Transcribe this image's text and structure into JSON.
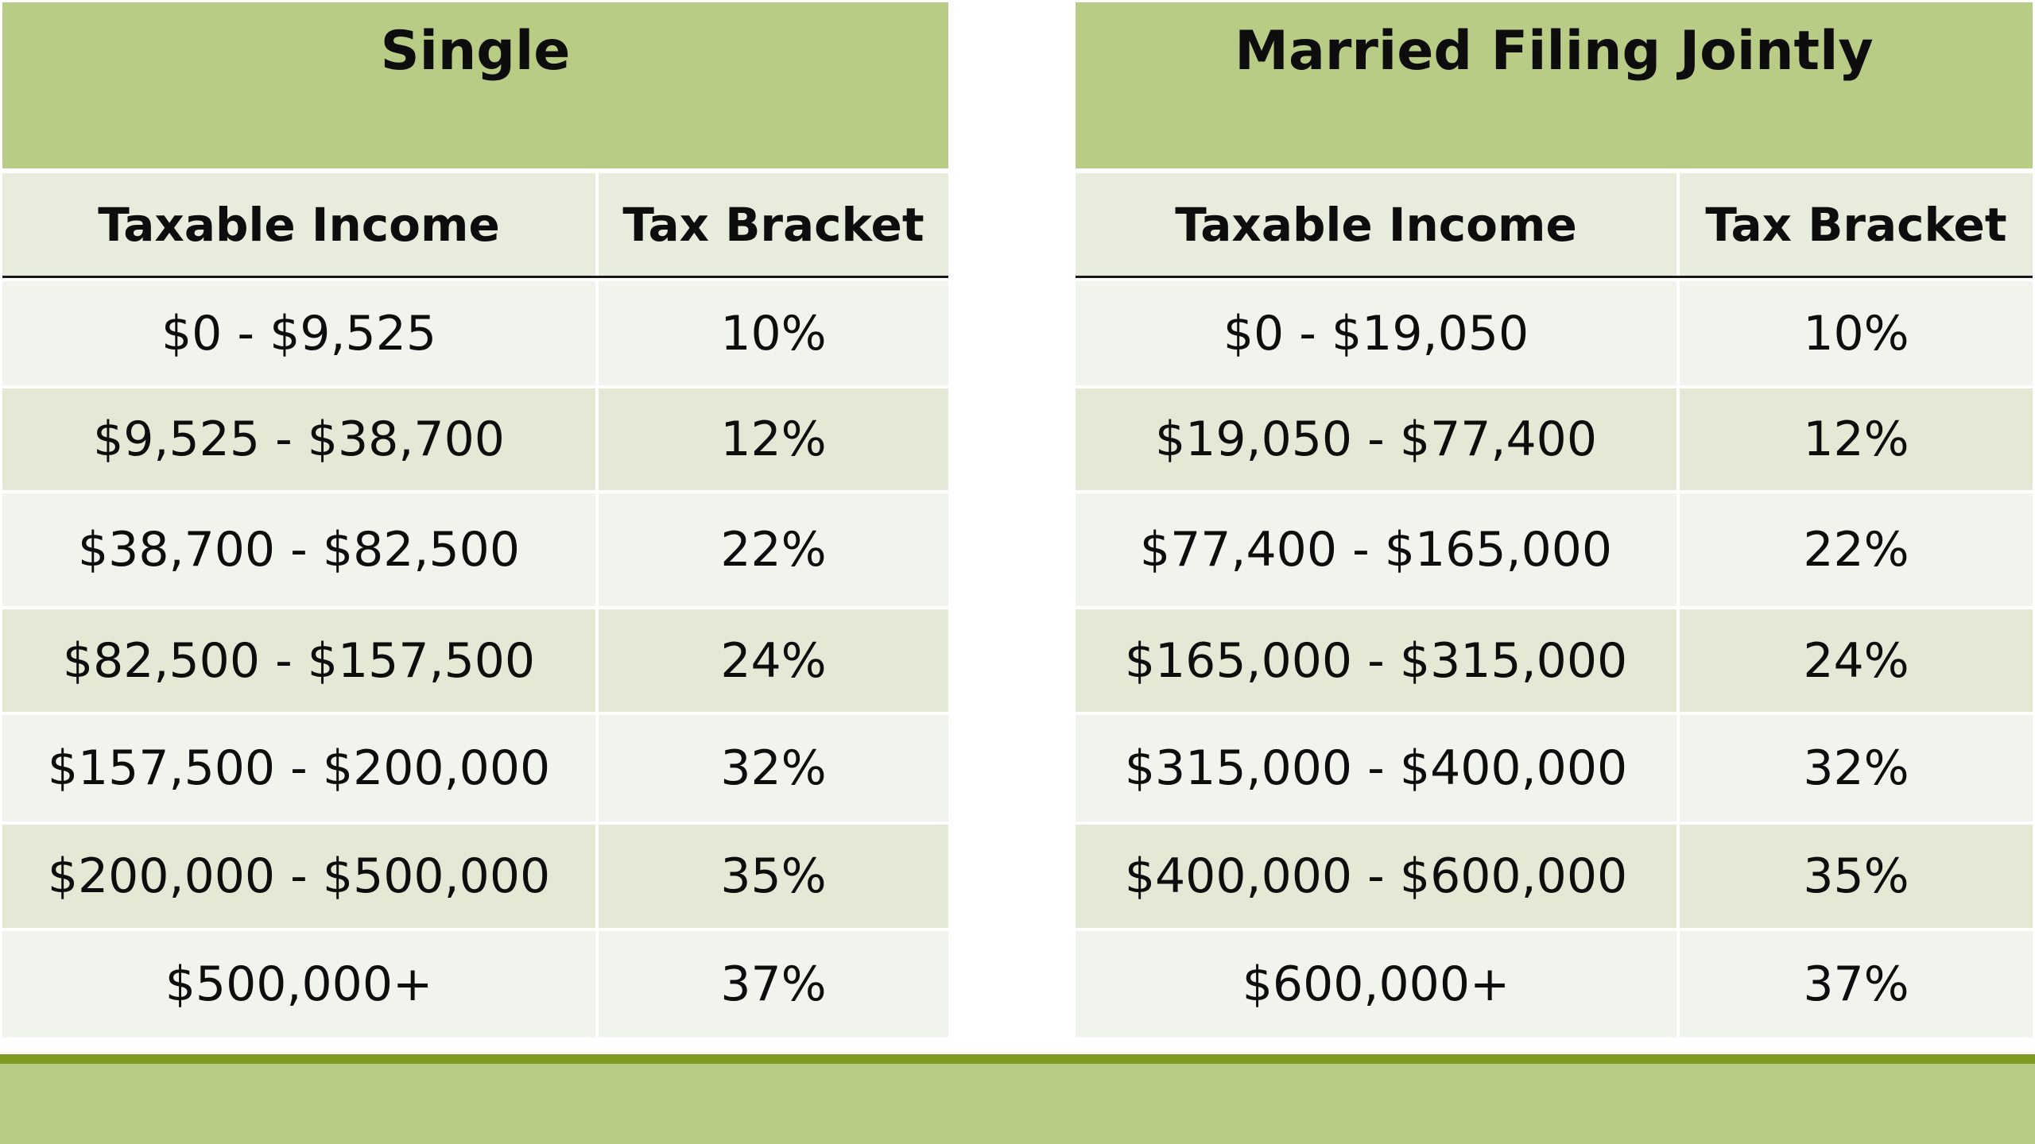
{
  "colors": {
    "title_band": "#b8cc86",
    "header_band": "#e8ecdc",
    "row_light": "#f1f4ec",
    "row_dark": "#e3e9d5",
    "footer_line": "#7d9a22"
  },
  "tables": [
    {
      "title": "Single",
      "headers": {
        "income": "Taxable Income",
        "bracket": "Tax Bracket"
      },
      "rows": [
        {
          "income": "$0 - $9,525",
          "bracket": "10%"
        },
        {
          "income": "$9,525 - $38,700",
          "bracket": "12%"
        },
        {
          "income": "$38,700 - $82,500",
          "bracket": "22%"
        },
        {
          "income": "$82,500 - $157,500",
          "bracket": "24%"
        },
        {
          "income": "$157,500 - $200,000",
          "bracket": "32%"
        },
        {
          "income": "$200,000 - $500,000",
          "bracket": "35%"
        },
        {
          "income": "$500,000+",
          "bracket": "37%"
        }
      ]
    },
    {
      "title": "Married Filing Jointly",
      "headers": {
        "income": "Taxable Income",
        "bracket": "Tax Bracket"
      },
      "rows": [
        {
          "income": "$0 - $19,050",
          "bracket": "10%"
        },
        {
          "income": "$19,050 - $77,400",
          "bracket": "12%"
        },
        {
          "income": "$77,400 - $165,000",
          "bracket": "22%"
        },
        {
          "income": "$165,000 - $315,000",
          "bracket": "24%"
        },
        {
          "income": "$315,000 - $400,000",
          "bracket": "32%"
        },
        {
          "income": "$400,000 - $600,000",
          "bracket": "35%"
        },
        {
          "income": "$600,000+",
          "bracket": "37%"
        }
      ]
    }
  ]
}
